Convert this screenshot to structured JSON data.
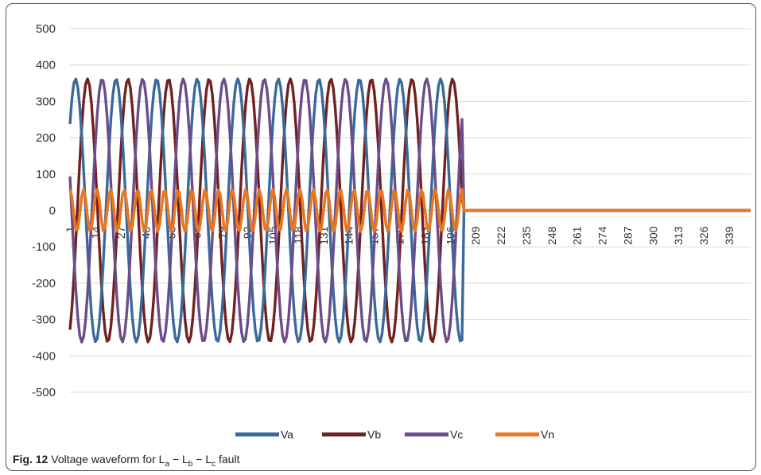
{
  "caption": {
    "label": "Fig. 12",
    "text": "Voltage waveform for ",
    "formula": [
      {
        "base": "L",
        "sub": "a"
      },
      {
        "op": " − "
      },
      {
        "base": "L",
        "sub": "b"
      },
      {
        "op": " − "
      },
      {
        "base": "L",
        "sub": "c"
      }
    ],
    "suffix": " fault"
  },
  "chart_data": {
    "type": "line",
    "title": "",
    "xlabel": "",
    "ylabel": "",
    "ylim": [
      -500,
      500
    ],
    "yticks": [
      500,
      400,
      300,
      200,
      100,
      0,
      -100,
      -200,
      -300,
      -400,
      -500
    ],
    "xlim": [
      1,
      350
    ],
    "xticks": [
      1,
      14,
      27,
      40,
      53,
      66,
      79,
      92,
      105,
      118,
      131,
      144,
      157,
      170,
      183,
      196,
      209,
      222,
      235,
      248,
      261,
      274,
      287,
      300,
      313,
      326,
      339
    ],
    "grid": "horizontal",
    "legend": "bottom",
    "waveform": {
      "samples": 350,
      "fault_sample": 202,
      "period_samples": 20.8,
      "amplitude": 362,
      "vn_amplitude": 58
    },
    "series": [
      {
        "name": "Va",
        "color": "#3a6a9c",
        "phase_deg": 41,
        "values_after_fault": 0
      },
      {
        "name": "Vb",
        "color": "#722121",
        "phase_deg": -65,
        "values_after_fault": 0
      },
      {
        "name": "Vc",
        "color": "#6b4d8c",
        "phase_deg": 165,
        "values_after_fault": 0
      },
      {
        "name": "Vn",
        "color": "#e87722",
        "phase_deg": 0,
        "values_after_fault": 0
      }
    ]
  }
}
